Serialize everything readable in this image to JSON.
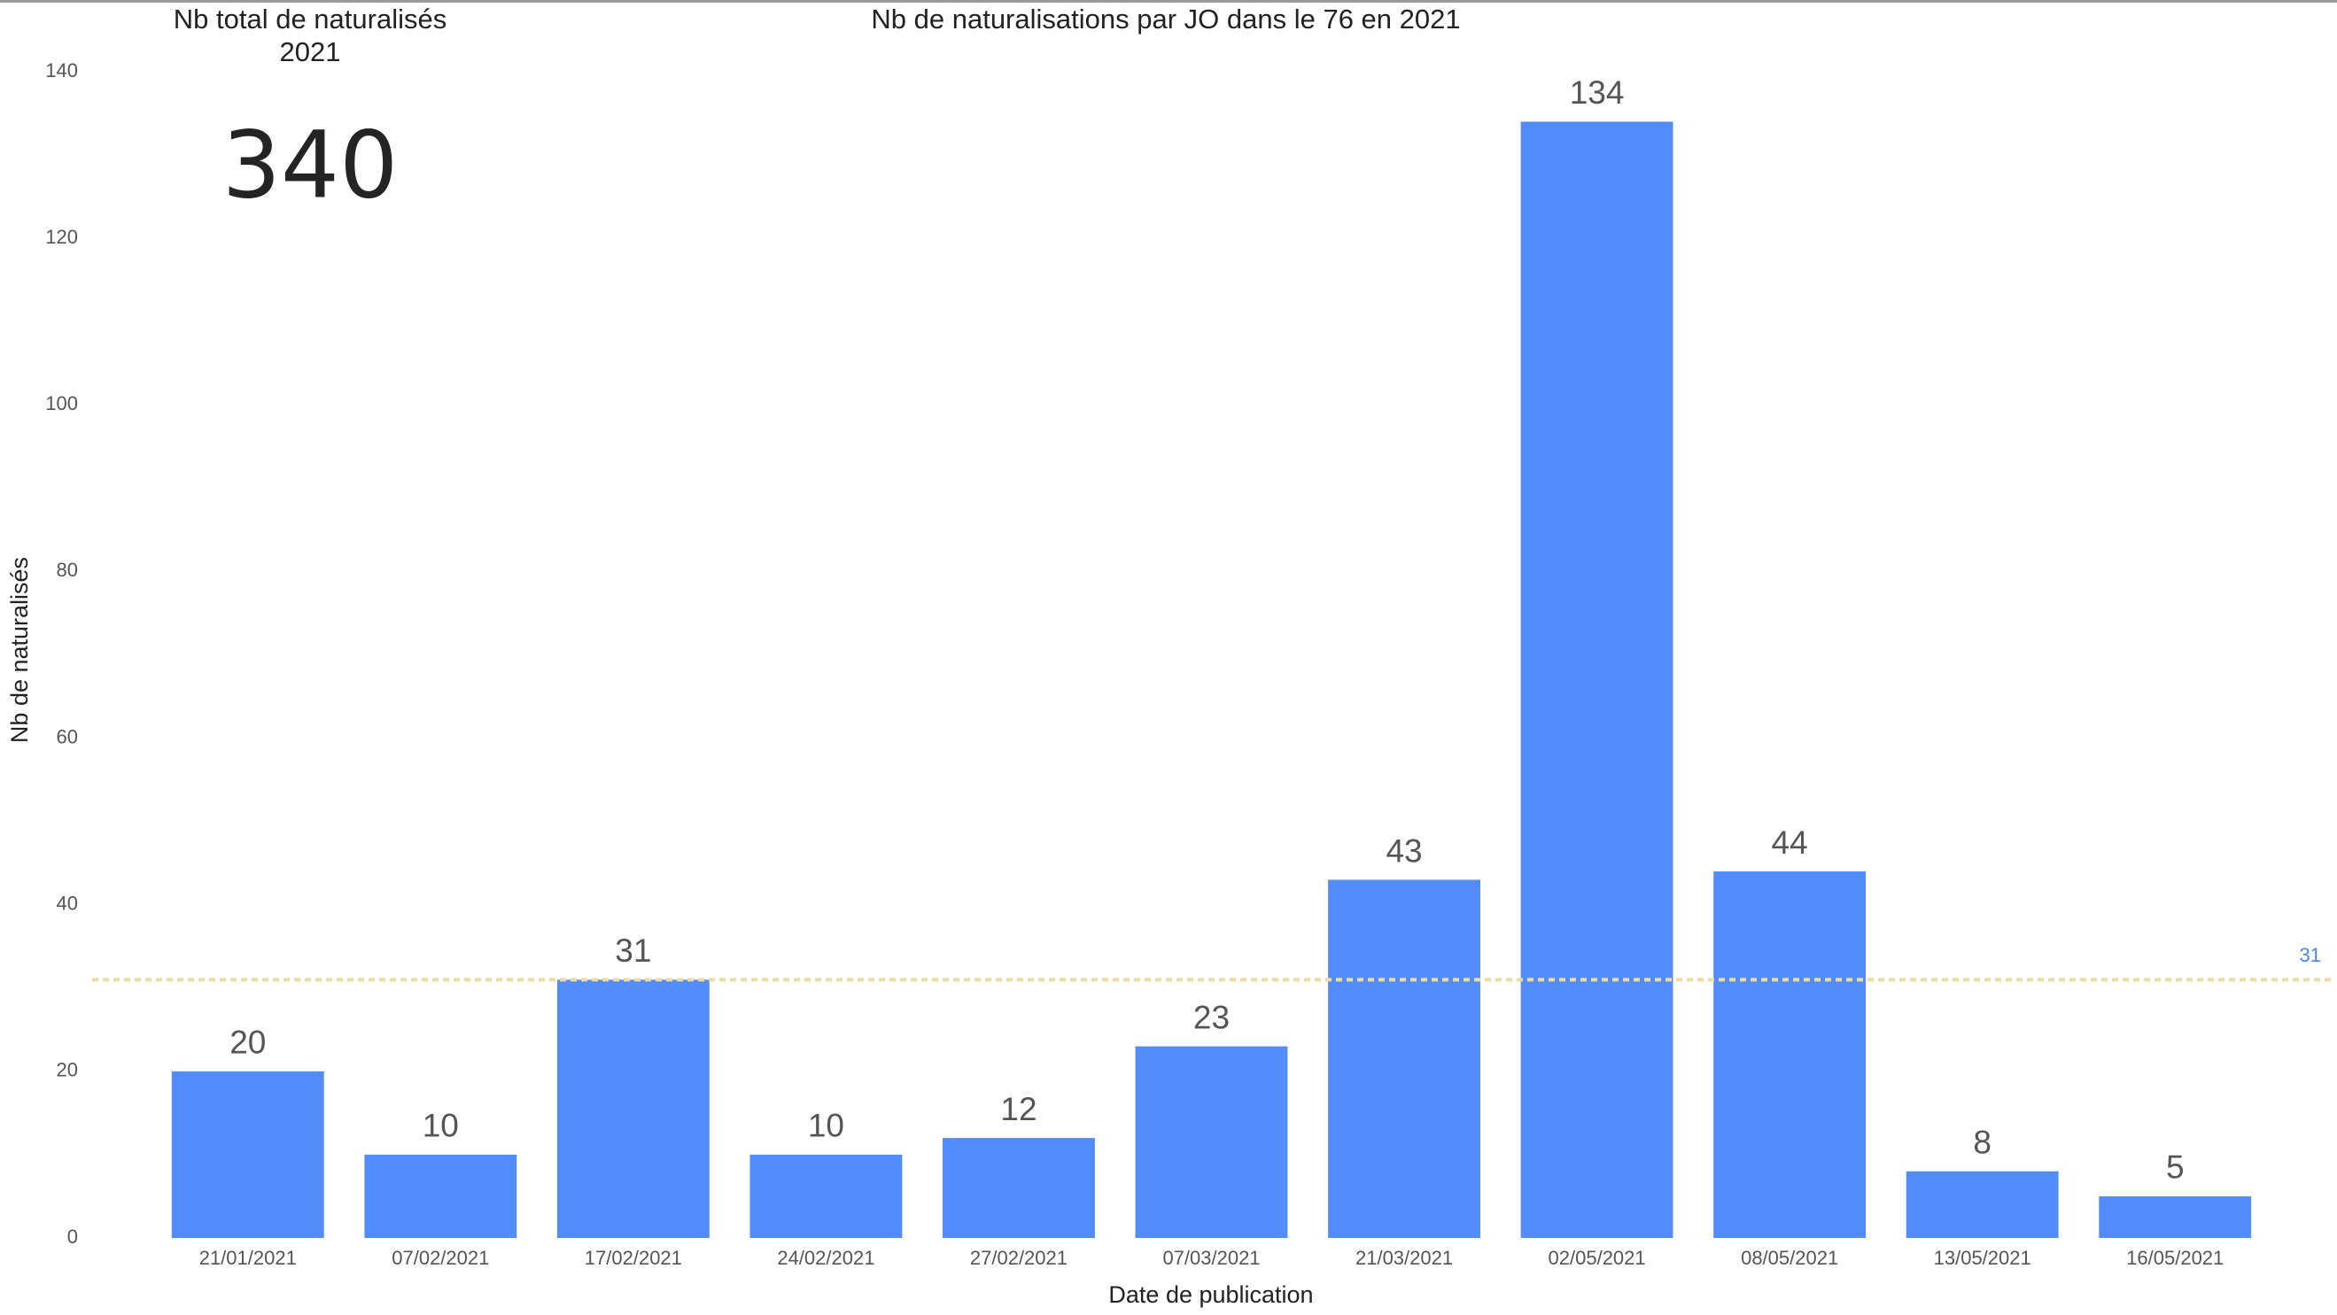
{
  "card": {
    "title": "Nb total de naturalisés",
    "subtitle": "2021",
    "value": 340
  },
  "chart_data": {
    "type": "bar",
    "title": "Nb de naturalisations par JO dans le 76 en 2021",
    "x_label": "Date de publication",
    "y_label": "Nb de naturalisés",
    "categories": [
      "21/01/2021",
      "07/02/2021",
      "17/02/2021",
      "24/02/2021",
      "27/02/2021",
      "07/03/2021",
      "21/03/2021",
      "02/05/2021",
      "08/05/2021",
      "13/05/2021",
      "16/05/2021"
    ],
    "values": [
      20,
      10,
      31,
      10,
      12,
      23,
      43,
      134,
      44,
      8,
      5
    ],
    "color": "#528bfa",
    "ylim": [
      0,
      140
    ],
    "yticks": [
      0,
      20,
      40,
      60,
      80,
      100,
      120,
      140
    ],
    "reference_line": 31,
    "reference_color": "#ecdca2",
    "reference_label_color": "#4a86e8"
  }
}
